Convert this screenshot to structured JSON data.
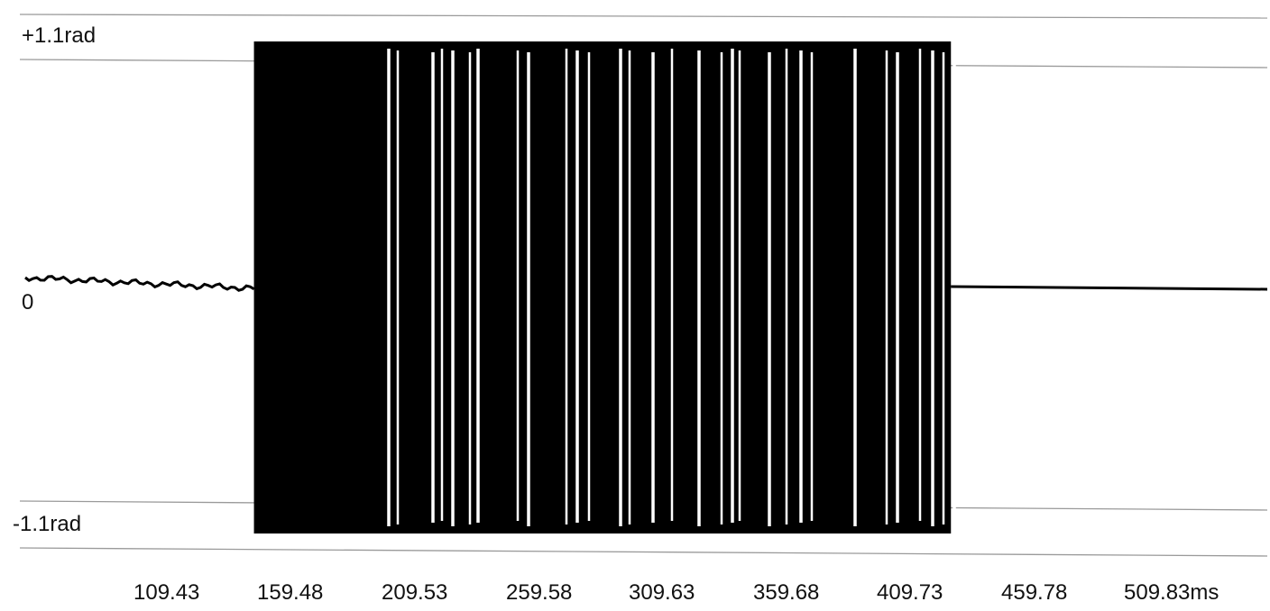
{
  "chart_data": {
    "type": "line",
    "y_axis": {
      "labels": {
        "top": "+1.1rad",
        "zero": "0",
        "bottom": "-1.1rad"
      },
      "ylim": [
        -1.2,
        1.2
      ]
    },
    "x_axis": {
      "unit": "ms",
      "tick_labels": [
        "109.43",
        "159.48",
        "209.53",
        "259.58",
        "309.63",
        "359.68",
        "409.73",
        "459.78",
        "509.83ms"
      ],
      "tick_values": [
        109.43,
        159.48,
        209.53,
        259.58,
        309.63,
        359.68,
        409.73,
        459.78,
        509.83
      ],
      "xlim": [
        70,
        530
      ]
    },
    "grid": "horizontal",
    "series": [
      {
        "values_description_free": true,
        "segments": [
          {
            "x": [
              70,
              155
            ],
            "y": [
              0.02,
              0.0
            ],
            "kind": "baseline"
          },
          {
            "x": [
              155,
              412
            ],
            "y_max": 1.07,
            "y_min": -1.07,
            "kind": "dense-oscillation"
          },
          {
            "x": [
              412,
              530
            ],
            "y": [
              0.0,
              -0.01
            ],
            "kind": "baseline"
          }
        ]
      }
    ],
    "colors": {
      "trace": "#000000",
      "grid": "#9a9a9a",
      "background": "#ffffff"
    }
  }
}
